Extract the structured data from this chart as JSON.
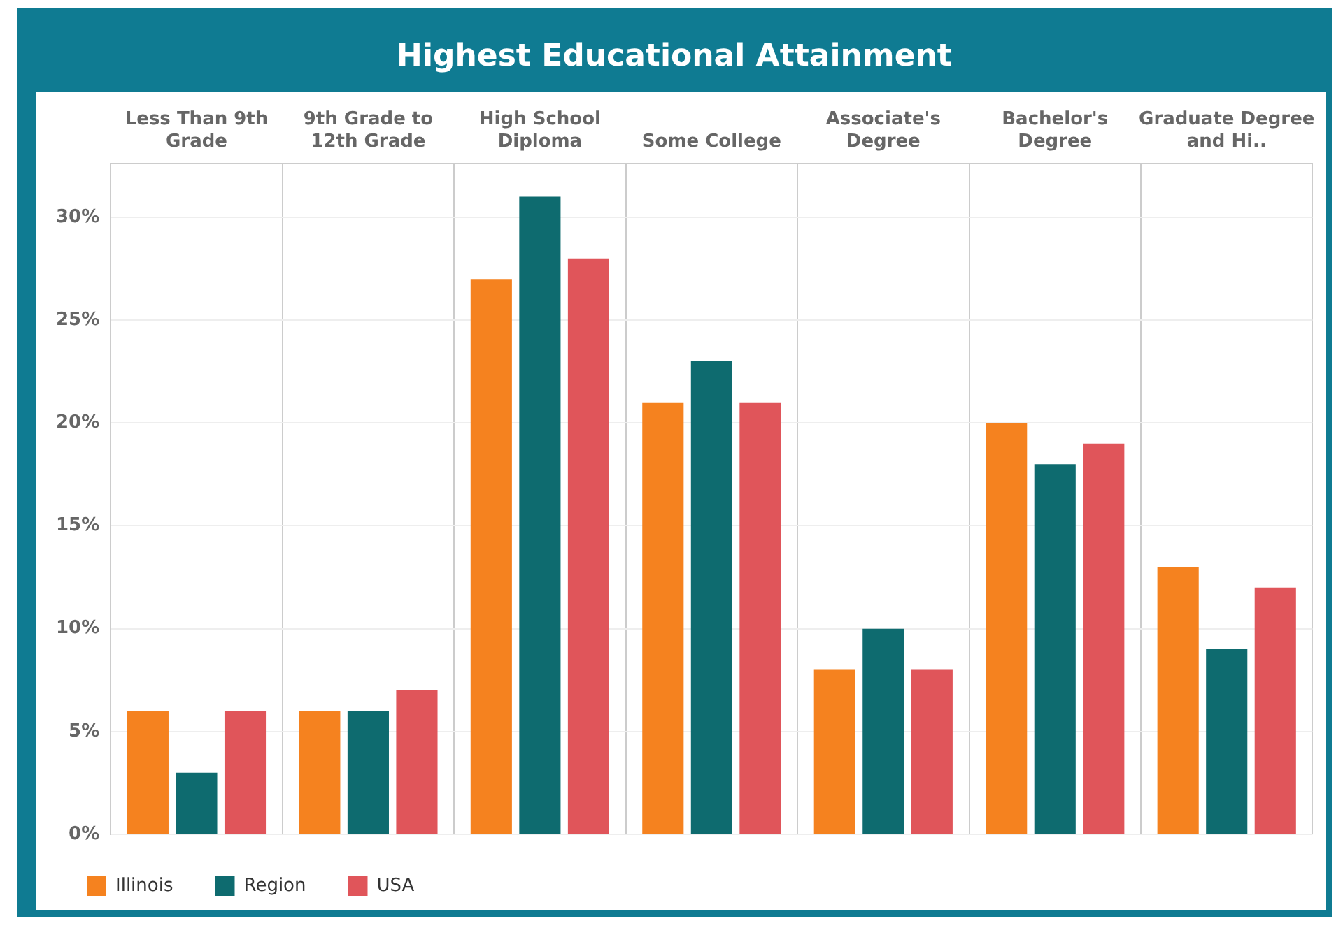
{
  "chart_data": {
    "type": "bar",
    "title": "Highest Educational Attainment",
    "categories": [
      "Less Than 9th Grade",
      "9th Grade to 12th Grade",
      "High School Diploma",
      "Some College",
      "Associate's Degree",
      "Bachelor's Degree",
      "Graduate Degree and Hi.."
    ],
    "series": [
      {
        "name": "Illinois",
        "color": "#f5821f",
        "values": [
          6,
          6,
          27,
          21,
          8,
          20,
          13
        ]
      },
      {
        "name": "Region",
        "color": "#0e6b6f",
        "values": [
          3,
          6,
          31,
          23,
          10,
          18,
          9
        ]
      },
      {
        "name": "USA",
        "color": "#e0555a",
        "values": [
          6,
          7,
          28,
          21,
          8,
          19,
          12
        ]
      }
    ],
    "ylim": [
      0,
      32.6
    ],
    "yticks": [
      {
        "value": 0,
        "label": "0%"
      },
      {
        "value": 5,
        "label": "5%"
      },
      {
        "value": 10,
        "label": "10%"
      },
      {
        "value": 15,
        "label": "15%"
      },
      {
        "value": 20,
        "label": "20%"
      },
      {
        "value": 25,
        "label": "25%"
      },
      {
        "value": 30,
        "label": "30%"
      }
    ],
    "grid": true,
    "legend": "bottom left"
  }
}
